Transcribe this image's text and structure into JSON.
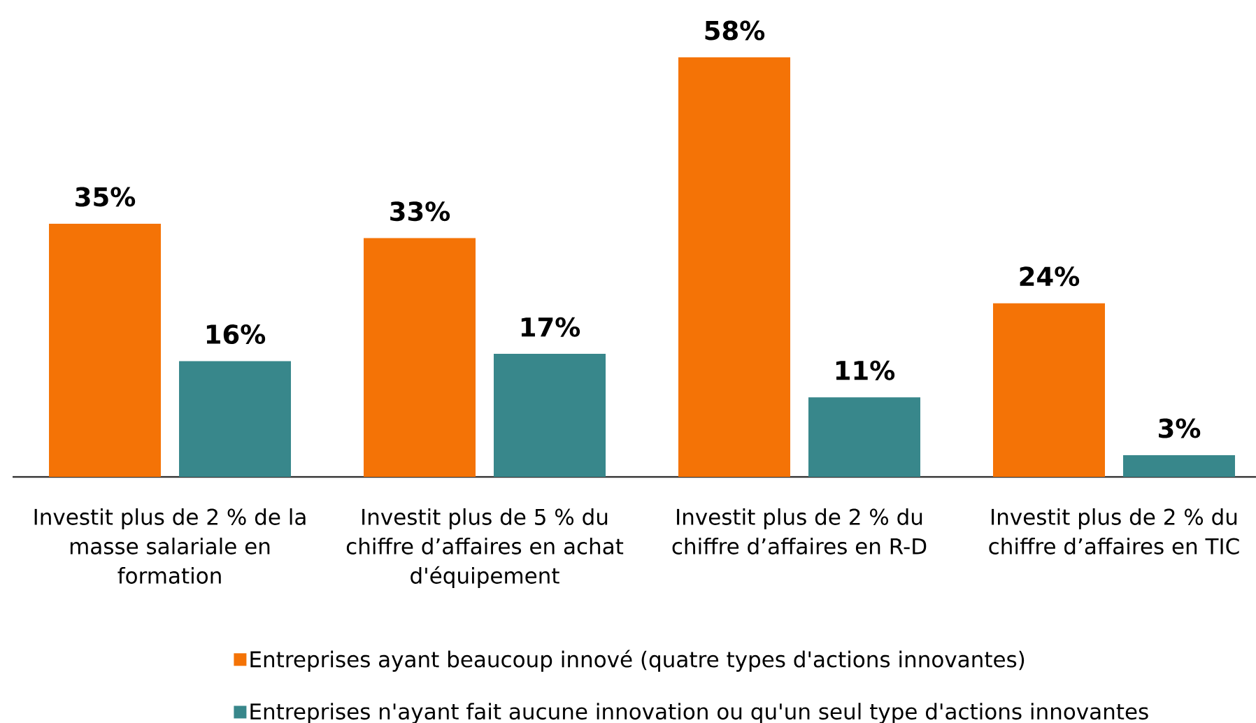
{
  "chart_data": {
    "type": "bar",
    "categories": [
      "Investit plus de 2 % de la masse salariale en formation",
      "Investit plus de 5 % du chiffre d’affaires en achat d'équipement",
      "Investit plus de 2 % du chiffre d’affaires en R-D",
      "Investit plus de 2 % du chiffre d’affaires en TIC"
    ],
    "series": [
      {
        "name": "Entreprises ayant beaucoup innové (quatre types d'actions innovantes)",
        "color": "#f47306",
        "values": [
          35,
          33,
          58,
          24
        ],
        "value_labels": [
          "35%",
          "33%",
          "58%",
          "24%"
        ]
      },
      {
        "name": "Entreprises n'ayant fait aucune innovation ou qu'un seul type d'actions innovantes",
        "color": "#38878b",
        "values": [
          16,
          17,
          11,
          3
        ],
        "value_labels": [
          "16%",
          "17%",
          "11%",
          "3%"
        ]
      }
    ],
    "legend": "bottom"
  }
}
